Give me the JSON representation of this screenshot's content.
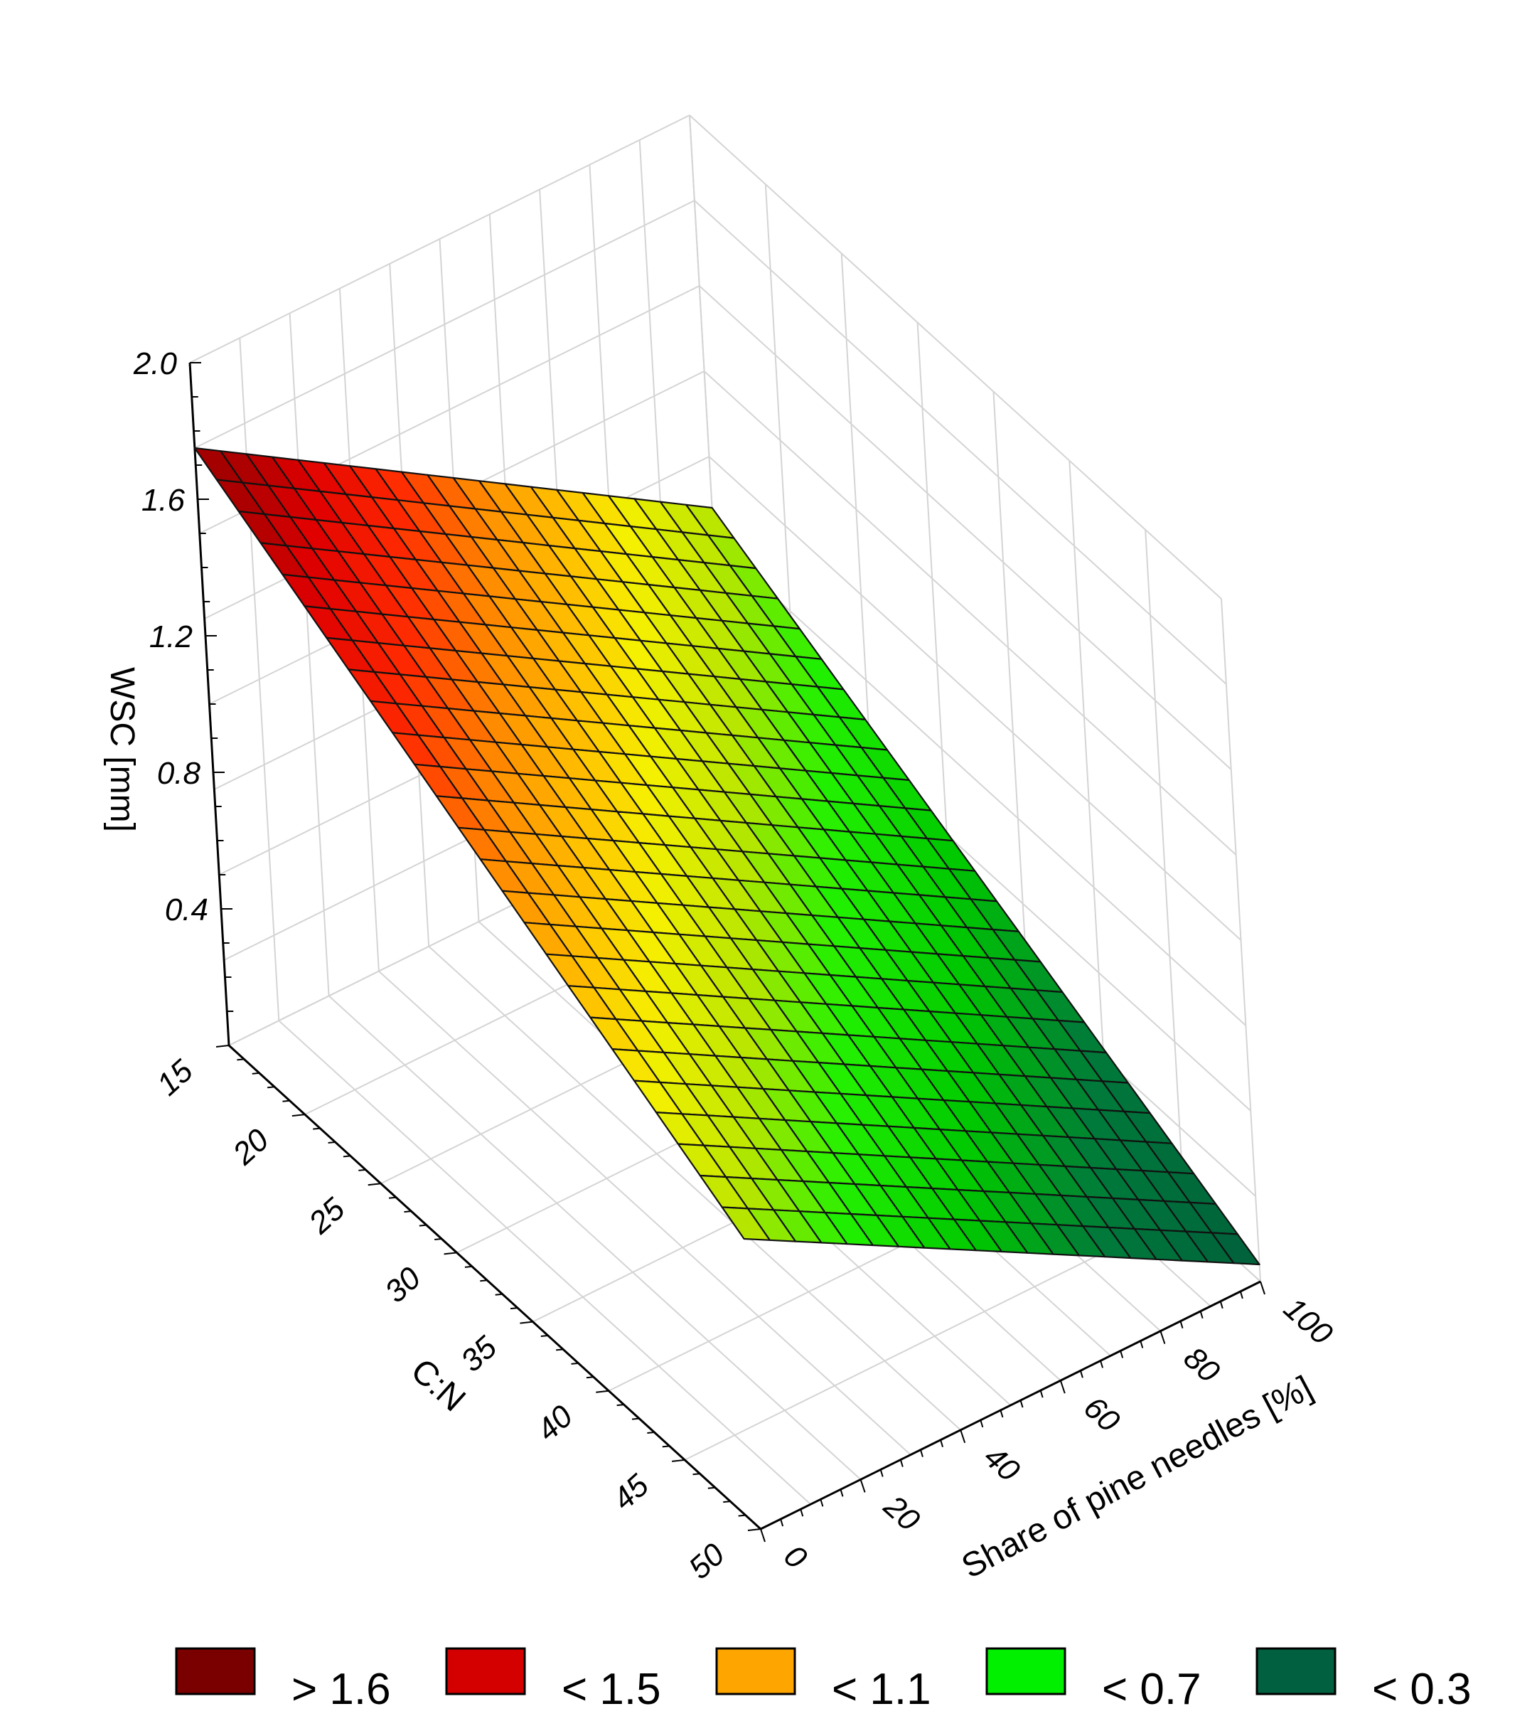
{
  "chart_data": {
    "type": "surface3d",
    "title": "",
    "z_label": "WSC [mm]",
    "y_label": "C:N",
    "x_label": "Share of pine needles [%]",
    "z_ticks": [
      "0.4",
      "0.8",
      "1.2",
      "1.6",
      "2.0"
    ],
    "y_ticks": [
      "15",
      "20",
      "25",
      "30",
      "35",
      "40",
      "45",
      "50"
    ],
    "x_ticks": [
      "0",
      "20",
      "40",
      "60",
      "80",
      "100"
    ],
    "x_range": [
      0,
      100
    ],
    "y_range": [
      15,
      50
    ],
    "z_range": [
      0,
      2.0
    ],
    "grid": true,
    "surface_corners": [
      {
        "x": 0,
        "y": 15,
        "z": 1.75
      },
      {
        "x": 100,
        "y": 15,
        "z": 0.85
      },
      {
        "x": 0,
        "y": 50,
        "z": 0.85
      },
      {
        "x": 100,
        "y": 50,
        "z": 0.05
      }
    ],
    "mesh_divisions": {
      "x": 20,
      "y": 25
    },
    "legend_position": "bottom",
    "legend": [
      {
        "label": "> 1.6",
        "color": "#7a0000"
      },
      {
        "label": "< 1.5",
        "color": "#d40000"
      },
      {
        "label": "< 1.1",
        "color": "#ffa500"
      },
      {
        "label": "< 0.7",
        "color": "#00f000"
      },
      {
        "label": "< 0.3",
        "color": "#006040"
      }
    ]
  }
}
